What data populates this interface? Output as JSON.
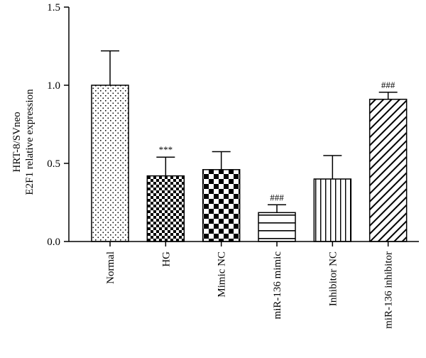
{
  "chart_data": {
    "type": "bar",
    "title": "",
    "xlabel": "",
    "ylabel_lines": [
      "HRT-8/SVneo",
      "E2F1 relative expression"
    ],
    "ylim": [
      0,
      1.5
    ],
    "yticks": [
      0.0,
      0.5,
      1.0,
      1.5
    ],
    "ytick_labels": [
      "0.0",
      "0.5",
      "1.0",
      "1.5"
    ],
    "categories": [
      "Normal",
      "HG",
      "Mimic NC",
      "miR-136 mimic",
      "Inhibitor NC",
      "miR-136 inhibitor"
    ],
    "values": [
      1.0,
      0.42,
      0.46,
      0.185,
      0.4,
      0.91
    ],
    "errors": [
      0.22,
      0.12,
      0.115,
      0.05,
      0.15,
      0.045
    ],
    "annotations": [
      "",
      "***",
      "",
      "###",
      "",
      "###"
    ],
    "patterns": [
      "dots",
      "checker-small",
      "checker-large",
      "horizontal-lines",
      "vertical-lines",
      "diagonal-lines"
    ],
    "grid": false,
    "legend": "none"
  }
}
